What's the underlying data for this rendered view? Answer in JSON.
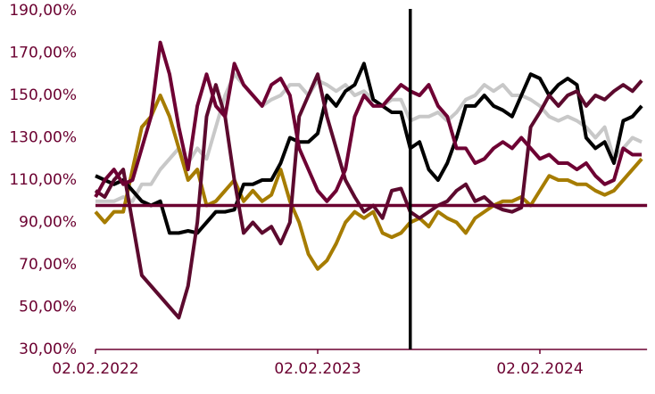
{
  "chart_data": {
    "type": "line",
    "categories": [
      "02.02.2022",
      null,
      null,
      null,
      null,
      null,
      null,
      null,
      null,
      null,
      null,
      null,
      null,
      null,
      null,
      null,
      null,
      null,
      null,
      null,
      null,
      null,
      null,
      null,
      "02.02.2023",
      null,
      null,
      null,
      null,
      null,
      null,
      null,
      null,
      null,
      null,
      null,
      null,
      null,
      null,
      null,
      null,
      null,
      null,
      null,
      null,
      null,
      null,
      null,
      "02.02.2024",
      null,
      null,
      null,
      null,
      null,
      null,
      null,
      null,
      null,
      null,
      null
    ],
    "series": [
      {
        "color": "#c8c8c8",
        "values": [
          100,
          100,
          100,
          102,
          100,
          108,
          108,
          115,
          120,
          125,
          118,
          125,
          120,
          135,
          150,
          160,
          155,
          150,
          145,
          148,
          150,
          155,
          155,
          150,
          157,
          155,
          152,
          155,
          150,
          152,
          148,
          145,
          148,
          148,
          138,
          140,
          140,
          142,
          138,
          142,
          148,
          150,
          155,
          152,
          155,
          150,
          150,
          148,
          145,
          140,
          138,
          140,
          138,
          135,
          130,
          135,
          120,
          125,
          130,
          128
        ]
      },
      {
        "color": "#a67c00",
        "values": [
          95,
          90,
          95,
          95,
          115,
          135,
          140,
          150,
          140,
          125,
          110,
          115,
          98,
          100,
          105,
          110,
          100,
          105,
          100,
          103,
          115,
          100,
          90,
          75,
          68,
          72,
          80,
          90,
          95,
          92,
          95,
          85,
          83,
          85,
          90,
          92,
          88,
          95,
          92,
          90,
          85,
          92,
          95,
          98,
          100,
          100,
          102,
          98,
          105,
          112,
          110,
          110,
          108,
          108,
          105,
          103,
          105,
          110,
          115,
          120
        ]
      },
      {
        "color": "#000000",
        "values": [
          112,
          110,
          108,
          110,
          105,
          100,
          98,
          100,
          85,
          85,
          86,
          85,
          90,
          95,
          95,
          96,
          108,
          108,
          110,
          110,
          118,
          130,
          128,
          128,
          132,
          150,
          145,
          152,
          155,
          165,
          148,
          145,
          142,
          142,
          125,
          128,
          115,
          110,
          118,
          130,
          145,
          145,
          150,
          145,
          143,
          140,
          150,
          160,
          158,
          150,
          155,
          158,
          155,
          130,
          125,
          128,
          118,
          138,
          140,
          145
        ]
      },
      {
        "color": "#5c0a2e",
        "values": [
          105,
          102,
          110,
          115,
          90,
          65,
          60,
          55,
          50,
          45,
          60,
          90,
          140,
          155,
          140,
          110,
          85,
          90,
          85,
          88,
          80,
          90,
          140,
          150,
          160,
          140,
          125,
          110,
          102,
          95,
          98,
          92,
          105,
          106,
          95,
          92,
          95,
          98,
          100,
          105,
          108,
          100,
          102,
          98,
          96,
          95,
          97,
          135,
          142,
          150,
          145,
          150,
          152,
          145,
          150,
          148,
          152,
          155,
          152,
          157
        ]
      },
      {
        "color": "#6e0033",
        "values": [
          102,
          110,
          115,
          108,
          110,
          125,
          140,
          175,
          160,
          135,
          115,
          145,
          160,
          145,
          140,
          165,
          155,
          150,
          145,
          155,
          158,
          150,
          125,
          115,
          105,
          100,
          105,
          115,
          140,
          150,
          145,
          145,
          150,
          155,
          152,
          150,
          155,
          145,
          140,
          125,
          125,
          118,
          120,
          125,
          128,
          125,
          130,
          125,
          120,
          122,
          118,
          118,
          115,
          118,
          112,
          108,
          110,
          125,
          122,
          122
        ]
      }
    ],
    "hline": 98,
    "hline_color": "#6b0030",
    "vline_index": 34,
    "vline_color": "#000000",
    "ylim": [
      30,
      190
    ],
    "yticks": [
      {
        "value": 30,
        "label": "30,00%"
      },
      {
        "value": 50,
        "label": "50,00%"
      },
      {
        "value": 70,
        "label": "70,00%"
      },
      {
        "value": 90,
        "label": "90,00%"
      },
      {
        "value": 110,
        "label": "110,00%"
      },
      {
        "value": 130,
        "label": "130,00%"
      },
      {
        "value": 150,
        "label": "150,00%"
      },
      {
        "value": 170,
        "label": "170,00%"
      },
      {
        "value": 190,
        "label": "190,00%"
      }
    ],
    "tick_label_color": "#6b0030",
    "grid": false
  }
}
